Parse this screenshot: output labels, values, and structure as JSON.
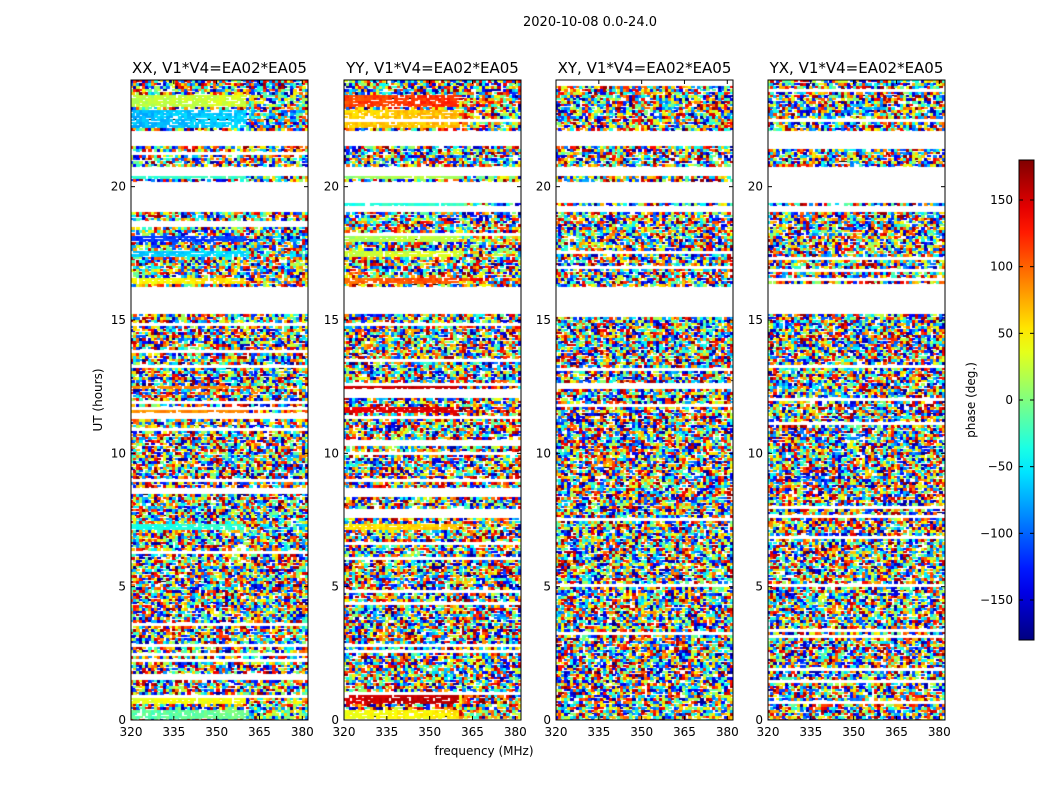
{
  "chart_data": {
    "type": "heatmap",
    "suptitle": "2020-10-08 0.0-24.0",
    "xlabel": "frequency (MHz)",
    "ylabel": "UT (hours)",
    "xlim": [
      320,
      382
    ],
    "ylim": [
      0,
      24
    ],
    "xticks": [
      320,
      335,
      350,
      365,
      380
    ],
    "yticks": [
      0,
      5,
      10,
      15,
      20
    ],
    "colorbar": {
      "label": "phase (deg.)",
      "range": [
        -180,
        180
      ],
      "ticks": [
        -150,
        -100,
        -50,
        0,
        50,
        100,
        150
      ],
      "tick_labels": [
        "−150",
        "−100",
        "−50",
        "0",
        "50",
        "100",
        "150"
      ],
      "colormap": "jet",
      "colors": [
        "#00007f",
        "#0000ff",
        "#007fff",
        "#00ffff",
        "#7fff7f",
        "#ffff00",
        "#ff7f00",
        "#ff0000",
        "#7f0000"
      ]
    },
    "panels": [
      {
        "title": "XX, V1*V4=EA02*EA05",
        "pol": "XX",
        "coherent_phase": true
      },
      {
        "title": "YY, V1*V4=EA02*EA05",
        "pol": "YY",
        "coherent_phase": true
      },
      {
        "title": "XY, V1*V4=EA02*EA05",
        "pol": "XY",
        "coherent_phase": false
      },
      {
        "title": "YX, V1*V4=EA02*EA05",
        "pol": "YX",
        "coherent_phase": false
      }
    ],
    "flagged_ut_ranges": [
      [
        15.25,
        16.2
      ],
      [
        19.0,
        19.25
      ],
      [
        19.4,
        20.2
      ],
      [
        20.45,
        20.75
      ],
      [
        21.5,
        22.1
      ]
    ],
    "coherent_segments": [
      {
        "ut": [
          22.2,
          22.9
        ],
        "xx_phase": -70,
        "yy_phase": 60
      },
      {
        "ut": [
          23.0,
          23.4
        ],
        "xx_phase": 20,
        "yy_phase": 110
      },
      {
        "ut": [
          20.28,
          20.4
        ],
        "xx_phase": -30,
        "yy_phase": 10
      },
      {
        "ut": [
          19.28,
          19.38
        ],
        "xx_phase": -140,
        "yy_phase": -35
      },
      {
        "ut": [
          17.9,
          18.1
        ],
        "xx_phase": -120,
        "yy_phase": 15
      },
      {
        "ut": [
          17.4,
          17.6
        ],
        "xx_phase": -65,
        "yy_phase": 25
      },
      {
        "ut": [
          16.3,
          16.6
        ],
        "xx_phase": 45,
        "yy_phase": 100
      },
      {
        "ut": [
          12.4,
          12.5
        ],
        "xx_phase": 85,
        "yy_phase": 150
      },
      {
        "ut": [
          11.5,
          11.7
        ],
        "xx_phase": 80,
        "yy_phase": 140
      },
      {
        "ut": [
          7.1,
          7.35
        ],
        "xx_phase": -40,
        "yy_phase": 55
      },
      {
        "ut": [
          0.6,
          0.9
        ],
        "xx_phase": 35,
        "yy_phase": 150
      },
      {
        "ut": [
          0.05,
          0.35
        ],
        "xx_phase": -15,
        "yy_phase": 40
      }
    ]
  }
}
